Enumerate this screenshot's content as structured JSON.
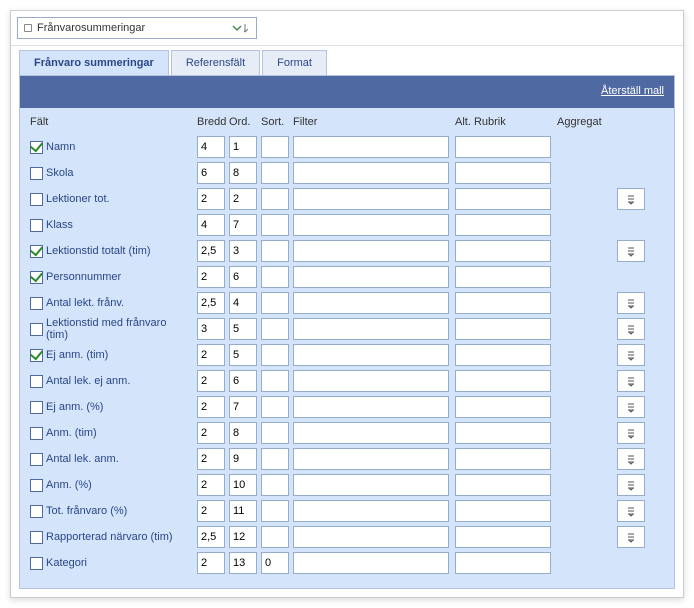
{
  "selector": {
    "label": "Frånvarosummeringar"
  },
  "tabs": [
    {
      "label": "Frånvaro summeringar",
      "active": true
    },
    {
      "label": "Referensfält",
      "active": false
    },
    {
      "label": "Format",
      "active": false
    }
  ],
  "reset_link": "Återställ mall",
  "headers": {
    "field": "Fält",
    "bredd": "Bredd",
    "ord": "Ord.",
    "sort": "Sort.",
    "filter": "Filter",
    "alt": "Alt. Rubrik",
    "agg": "Aggregat"
  },
  "rows": [
    {
      "checked": true,
      "label": "Namn",
      "bredd": "4",
      "ord": "1",
      "sort": "",
      "filter": "",
      "alt": "",
      "agg": false
    },
    {
      "checked": false,
      "label": "Skola",
      "bredd": "6",
      "ord": "8",
      "sort": "",
      "filter": "",
      "alt": "",
      "agg": false
    },
    {
      "checked": false,
      "label": "Lektioner tot.",
      "bredd": "2",
      "ord": "2",
      "sort": "",
      "filter": "",
      "alt": "",
      "agg": true
    },
    {
      "checked": false,
      "label": "Klass",
      "bredd": "4",
      "ord": "7",
      "sort": "",
      "filter": "",
      "alt": "",
      "agg": false
    },
    {
      "checked": true,
      "label": "Lektionstid totalt (tim)",
      "bredd": "2,5",
      "ord": "3",
      "sort": "",
      "filter": "",
      "alt": "",
      "agg": true
    },
    {
      "checked": true,
      "label": "Personnummer",
      "bredd": "2",
      "ord": "6",
      "sort": "",
      "filter": "",
      "alt": "",
      "agg": false
    },
    {
      "checked": false,
      "label": "Antal lekt. frånv.",
      "bredd": "2,5",
      "ord": "4",
      "sort": "",
      "filter": "",
      "alt": "",
      "agg": true
    },
    {
      "checked": false,
      "label": "Lektionstid med frånvaro (tim)",
      "bredd": "3",
      "ord": "5",
      "sort": "",
      "filter": "",
      "alt": "",
      "agg": true
    },
    {
      "checked": true,
      "label": "Ej anm. (tim)",
      "bredd": "2",
      "ord": "5",
      "sort": "",
      "filter": "",
      "alt": "",
      "agg": true
    },
    {
      "checked": false,
      "label": "Antal lek. ej anm.",
      "bredd": "2",
      "ord": "6",
      "sort": "",
      "filter": "",
      "alt": "",
      "agg": true
    },
    {
      "checked": false,
      "label": "Ej anm. (%)",
      "bredd": "2",
      "ord": "7",
      "sort": "",
      "filter": "",
      "alt": "",
      "agg": true
    },
    {
      "checked": false,
      "label": "Anm. (tim)",
      "bredd": "2",
      "ord": "8",
      "sort": "",
      "filter": "",
      "alt": "",
      "agg": true
    },
    {
      "checked": false,
      "label": "Antal lek. anm.",
      "bredd": "2",
      "ord": "9",
      "sort": "",
      "filter": "",
      "alt": "",
      "agg": true
    },
    {
      "checked": false,
      "label": "Anm. (%)",
      "bredd": "2",
      "ord": "10",
      "sort": "",
      "filter": "",
      "alt": "",
      "agg": true
    },
    {
      "checked": false,
      "label": "Tot. frånvaro (%)",
      "bredd": "2",
      "ord": "11",
      "sort": "",
      "filter": "",
      "alt": "",
      "agg": true
    },
    {
      "checked": false,
      "label": "Rapporterad närvaro (tim)",
      "bredd": "2,5",
      "ord": "12",
      "sort": "",
      "filter": "",
      "alt": "",
      "agg": true
    },
    {
      "checked": false,
      "label": "Kategori",
      "bredd": "2",
      "ord": "13",
      "sort": "0",
      "filter": "",
      "alt": "",
      "agg": false
    }
  ],
  "colors": {
    "panel_bg": "#d4e4fa",
    "header_bar": "#4f6aa3",
    "border": "#95adc8",
    "link": "#2a4788"
  }
}
